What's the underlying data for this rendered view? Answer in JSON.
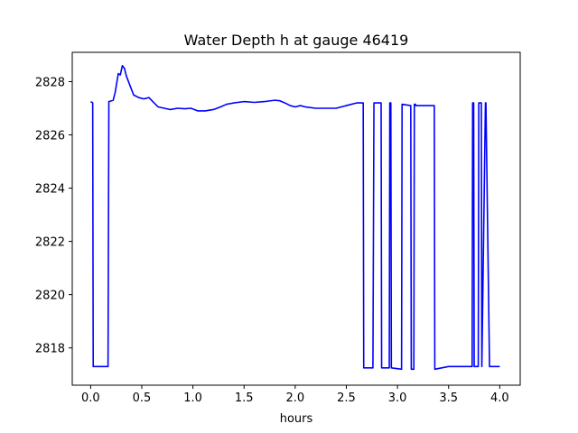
{
  "chart_data": {
    "type": "line",
    "title": "Water Depth h at gauge 46419",
    "xlabel": "hours",
    "ylabel": "",
    "xlim": [
      -0.18,
      4.2
    ],
    "ylim": [
      2816.6,
      2829.1
    ],
    "xticks": [
      0.0,
      0.5,
      1.0,
      1.5,
      2.0,
      2.5,
      3.0,
      3.5,
      4.0
    ],
    "xtick_labels": [
      "0.0",
      "0.5",
      "1.0",
      "1.5",
      "2.0",
      "2.5",
      "3.0",
      "3.5",
      "4.0"
    ],
    "yticks": [
      2818,
      2820,
      2822,
      2824,
      2826,
      2828
    ],
    "ytick_labels": [
      "2818",
      "2820",
      "2822",
      "2824",
      "2826",
      "2828"
    ],
    "grid": false,
    "legend": "none",
    "series": [
      {
        "color": "#0000ff",
        "x": [
          0.0,
          0.02,
          0.025,
          0.17,
          0.178,
          0.22,
          0.24,
          0.27,
          0.29,
          0.31,
          0.33,
          0.35,
          0.38,
          0.42,
          0.47,
          0.52,
          0.57,
          0.62,
          0.66,
          0.72,
          0.78,
          0.85,
          0.92,
          0.98,
          1.05,
          1.12,
          1.2,
          1.27,
          1.33,
          1.4,
          1.5,
          1.6,
          1.7,
          1.8,
          1.85,
          1.9,
          1.95,
          2.0,
          2.05,
          2.1,
          2.2,
          2.3,
          2.4,
          2.5,
          2.6,
          2.665,
          2.67,
          2.76,
          2.77,
          2.84,
          2.845,
          2.92,
          2.925,
          2.935,
          2.94,
          3.04,
          3.045,
          3.13,
          3.135,
          3.16,
          3.165,
          3.175,
          3.18,
          3.36,
          3.365,
          3.5,
          3.6,
          3.7,
          3.73,
          3.735,
          3.745,
          3.75,
          3.79,
          3.795,
          3.82,
          3.825,
          3.86,
          3.865,
          3.9,
          4.0
        ],
        "y": [
          2827.25,
          2827.2,
          2817.3,
          2817.3,
          2827.25,
          2827.3,
          2827.6,
          2828.3,
          2828.25,
          2828.6,
          2828.5,
          2828.2,
          2827.9,
          2827.5,
          2827.4,
          2827.35,
          2827.4,
          2827.2,
          2827.05,
          2827.0,
          2826.95,
          2827.0,
          2826.98,
          2827.0,
          2826.9,
          2826.9,
          2826.95,
          2827.05,
          2827.15,
          2827.2,
          2827.25,
          2827.22,
          2827.25,
          2827.3,
          2827.28,
          2827.2,
          2827.1,
          2827.05,
          2827.1,
          2827.05,
          2827.0,
          2827.0,
          2827.0,
          2827.1,
          2827.2,
          2827.2,
          2817.25,
          2817.25,
          2827.2,
          2827.2,
          2817.25,
          2817.25,
          2827.2,
          2827.2,
          2817.25,
          2817.2,
          2827.15,
          2827.1,
          2817.2,
          2817.2,
          2827.15,
          2827.15,
          2827.1,
          2827.1,
          2817.2,
          2817.3,
          2817.3,
          2817.3,
          2817.3,
          2827.2,
          2827.2,
          2817.3,
          2817.3,
          2827.2,
          2827.2,
          2817.3,
          2827.2,
          2827.2,
          2817.3,
          2817.3
        ]
      }
    ]
  }
}
